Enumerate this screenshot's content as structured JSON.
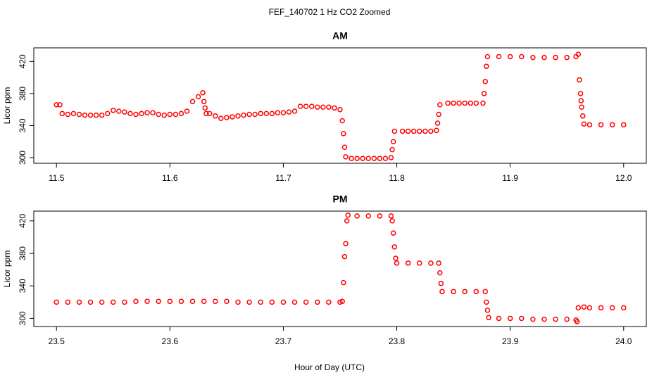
{
  "title": "FEF_140702 1 Hz CO2 Zoomed",
  "xlabel": "Hour of Day (UTC)",
  "chart_data": [
    {
      "type": "scatter",
      "title": "AM",
      "ylabel": "Licor ppm",
      "color": "#ff0000",
      "x": [
        11.5,
        11.503,
        11.505,
        11.51,
        11.515,
        11.52,
        11.525,
        11.53,
        11.535,
        11.54,
        11.545,
        11.55,
        11.555,
        11.56,
        11.565,
        11.57,
        11.575,
        11.58,
        11.585,
        11.59,
        11.595,
        11.6,
        11.605,
        11.61,
        11.615,
        11.62,
        11.625,
        11.629,
        11.63,
        11.631,
        11.632,
        11.635,
        11.64,
        11.645,
        11.65,
        11.655,
        11.66,
        11.665,
        11.67,
        11.675,
        11.68,
        11.685,
        11.69,
        11.695,
        11.7,
        11.705,
        11.71,
        11.715,
        11.72,
        11.725,
        11.73,
        11.735,
        11.74,
        11.745,
        11.75,
        11.752,
        11.753,
        11.754,
        11.755,
        11.76,
        11.765,
        11.77,
        11.775,
        11.78,
        11.785,
        11.79,
        11.795,
        11.796,
        11.797,
        11.798,
        11.805,
        11.81,
        11.815,
        11.82,
        11.825,
        11.83,
        11.835,
        11.836,
        11.837,
        11.838,
        11.845,
        11.85,
        11.855,
        11.86,
        11.865,
        11.87,
        11.876,
        11.877,
        11.878,
        11.879,
        11.88,
        11.89,
        11.9,
        11.91,
        11.92,
        11.93,
        11.94,
        11.95,
        11.958,
        11.96,
        11.961,
        11.962,
        11.9625,
        11.963,
        11.964,
        11.965,
        11.97,
        11.98,
        11.99,
        12.0
      ],
      "values": [
        366,
        366,
        355,
        354,
        355,
        354,
        353,
        353,
        353,
        353,
        355,
        359,
        358,
        357,
        355,
        354,
        355,
        356,
        356,
        354,
        353,
        354,
        354,
        355,
        358,
        370,
        376,
        381,
        370,
        362,
        355,
        355,
        352,
        349,
        350,
        351,
        352,
        353,
        354,
        354,
        355,
        355,
        355,
        356,
        356,
        357,
        358,
        364,
        364,
        364,
        363,
        363,
        363,
        362,
        360,
        346,
        330,
        313,
        301,
        299,
        299,
        299,
        299,
        299,
        299,
        299,
        300,
        310,
        320,
        333,
        333,
        333,
        333,
        333,
        333,
        333,
        334,
        343,
        354,
        366,
        368,
        368,
        368,
        368,
        368,
        368,
        368,
        380,
        395,
        414,
        426,
        426,
        426,
        426,
        425,
        425,
        425,
        425,
        426,
        429,
        397,
        380,
        371,
        363,
        352,
        342,
        341,
        341,
        341,
        341
      ],
      "xlim": [
        11.48,
        12.02
      ],
      "ylim": [
        293,
        437
      ],
      "xticks": [
        11.5,
        11.6,
        11.7,
        11.8,
        11.9,
        {
          "value": 12,
          "label": "12.0"
        }
      ],
      "yticks": [
        300,
        340,
        380,
        420
      ]
    },
    {
      "type": "scatter",
      "title": "PM",
      "ylabel": "Licor ppm",
      "color": "#ff0000",
      "x": [
        23.5,
        23.51,
        23.52,
        23.53,
        23.54,
        23.55,
        23.56,
        23.57,
        23.58,
        23.59,
        23.6,
        23.61,
        23.62,
        23.63,
        23.64,
        23.65,
        23.66,
        23.67,
        23.68,
        23.69,
        23.7,
        23.71,
        23.72,
        23.73,
        23.74,
        23.75,
        23.752,
        23.753,
        23.754,
        23.755,
        23.756,
        23.757,
        23.765,
        23.775,
        23.785,
        23.795,
        23.796,
        23.797,
        23.798,
        23.799,
        23.8,
        23.81,
        23.82,
        23.83,
        23.837,
        23.838,
        23.839,
        23.84,
        23.85,
        23.86,
        23.87,
        23.878,
        23.879,
        23.88,
        23.881,
        23.89,
        23.9,
        23.91,
        23.92,
        23.93,
        23.94,
        23.95,
        23.958,
        23.959,
        23.96,
        23.965,
        23.97,
        23.98,
        23.99,
        24.0
      ],
      "values": [
        320,
        320,
        320,
        320,
        320,
        320,
        320,
        321,
        321,
        321,
        321,
        321,
        321,
        321,
        321,
        321,
        320,
        320,
        320,
        320,
        320,
        320,
        320,
        320,
        320,
        320,
        321,
        344,
        376,
        392,
        420,
        427,
        426,
        426,
        426,
        426,
        420,
        405,
        388,
        374,
        368,
        368,
        368,
        368,
        368,
        356,
        343,
        333,
        333,
        333,
        333,
        333,
        320,
        310,
        301,
        300,
        300,
        300,
        299,
        299,
        299,
        299,
        298,
        296,
        313,
        314,
        313,
        313,
        313,
        313
      ],
      "xlim": [
        23.48,
        24.02
      ],
      "ylim": [
        290,
        432
      ],
      "xticks": [
        23.5,
        23.6,
        23.7,
        23.8,
        23.9,
        {
          "value": 24,
          "label": "24.0"
        }
      ],
      "yticks": [
        300,
        340,
        380,
        420
      ]
    }
  ]
}
